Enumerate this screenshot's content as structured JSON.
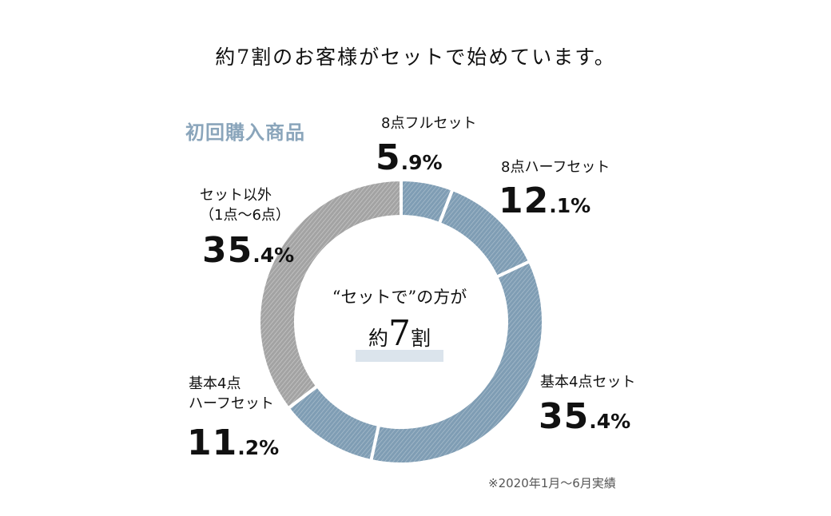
{
  "headline": "約7割のお客様がセットで始めています。",
  "chart_data": {
    "type": "pie",
    "title": "初回購入商品",
    "categories": [
      "8点フルセット",
      "8点ハーフセット",
      "基本4点セット",
      "基本4点 ハーフセット",
      "セット以外（1点〜6点）"
    ],
    "values": [
      5.9,
      12.1,
      35.4,
      11.2,
      35.4
    ],
    "unit": "%",
    "colors": [
      "#7f9db4",
      "#7f9db4",
      "#7f9db4",
      "#7f9db4",
      "#a3a3a3"
    ],
    "labels": [
      {
        "lines": [
          "8点フルセット"
        ],
        "int": "5",
        "dec": ".9%"
      },
      {
        "lines": [
          "8点ハーフセット"
        ],
        "int": "12",
        "dec": ".1%"
      },
      {
        "lines": [
          "基本4点セット"
        ],
        "int": "35",
        "dec": ".4%"
      },
      {
        "lines": [
          "基本4点",
          "ハーフセット"
        ],
        "int": "11",
        "dec": ".2%"
      },
      {
        "lines": [
          "セット以外",
          "（1点〜6点）"
        ],
        "int": "35",
        "dec": ".4%"
      }
    ],
    "center": {
      "line1": "“セットで”の方が",
      "line2_prefix": "約",
      "line2_number": "7",
      "line2_suffix": "割"
    }
  },
  "note": "※2020年1月〜6月実績"
}
